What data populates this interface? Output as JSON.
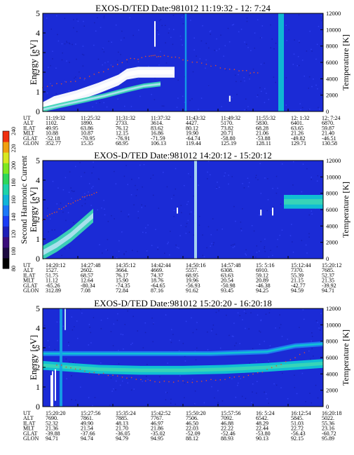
{
  "figure": {
    "colorbar": {
      "label": "Second Harmonic Current",
      "ticks": [
        "80",
        "100",
        "120",
        "140",
        "160",
        "180",
        "200",
        "220",
        "240"
      ],
      "colors": [
        "#000000",
        "#1c0a40",
        "#3a0d7a",
        "#1d1fb8",
        "#1a3cf5",
        "#1b78f8",
        "#10b4d8",
        "#1fd4a8",
        "#2fd85a",
        "#7ee820",
        "#d8e820",
        "#f0a010",
        "#f03010"
      ]
    },
    "panels": [
      {
        "title": "EXOS-D/TED   Date:981012  11:19:32 - 12: 7:24",
        "ylabel": "Energy [eV]",
        "y2label": "Temperature [K]",
        "yticks": [
          "0",
          "1",
          "2",
          "3",
          "4",
          "5"
        ],
        "y2ticks": [
          "0",
          "2000",
          "4000",
          "6000",
          "8000",
          "10000",
          "12000"
        ],
        "rows": [
          {
            "label": "UT",
            "values": [
              "11:19:32",
              "11:25:32",
              "11:31:32",
              "11:37:32",
              "11:43:32",
              "11:49:32",
              "11:55:32",
              "12: 1:32",
              "12: 7:24"
            ]
          },
          {
            "label": "ALT",
            "values": [
              "1102.",
              "1890.",
              "2733.",
              "3614.",
              "4427.",
              "5170.",
              "5830.",
              "6401.",
              "6870."
            ]
          },
          {
            "label": "ILAT",
            "values": [
              "49.95",
              "63.86",
              "76.12",
              "83.62",
              "80.12",
              "73.82",
              "68.28",
              "63.65",
              "59.87"
            ]
          },
          {
            "label": "MLT",
            "values": [
              "10.88",
              "10.87",
              "12.15",
              "16.86",
              "19.90",
              "20.71",
              "21.06",
              "21.26",
              "21.40"
            ]
          },
          {
            "label": "GLAT",
            "values": [
              "-52.18",
              "-70.95",
              "-76.91",
              "-71.59",
              "-64.74",
              "-58.80",
              "-53.88",
              "-49.82",
              "-46.51"
            ]
          },
          {
            "label": "GLON",
            "values": [
              "352.77",
              "15.35",
              "68.95",
              "106.13",
              "119.44",
              "125.19",
              "128.11",
              "129.71",
              "130.58"
            ]
          }
        ]
      },
      {
        "title": "EXOS-D/TED   Date:981012  14:20:12 - 15:20:12",
        "ylabel": "Energy [eV]",
        "y2label": "Temperature [K]",
        "yticks": [
          "0",
          "1",
          "2",
          "3",
          "4",
          "5"
        ],
        "y2ticks": [
          "0",
          "2000",
          "4000",
          "6000",
          "8000",
          "10000",
          "12000"
        ],
        "rows": [
          {
            "label": "UT",
            "values": [
              "14:20:12",
              "14:27:48",
              "14:35:12",
              "14:42:44",
              "14:50:16",
              "14:57:48",
              "15: 5:16",
              "15:12:44",
              "15:20:12"
            ]
          },
          {
            "label": "ALT",
            "values": [
              "1527.",
              "2602.",
              "3664.",
              "4669.",
              "5557.",
              "6308.",
              "6910.",
              "7370.",
              "7685."
            ]
          },
          {
            "label": "ILAT",
            "values": [
              "51.75",
              "68.57",
              "76.17",
              "74.37",
              "68.95",
              "63.63",
              "59.12",
              "55.39",
              "52.37"
            ]
          },
          {
            "label": "MLT",
            "values": [
              "11.12",
              "12.64",
              "15.90",
              "18.76",
              "19.96",
              "20.54",
              "20.89",
              "21.15",
              "21.35"
            ]
          },
          {
            "label": "GLAT",
            "values": [
              "-65.26",
              "-80.34",
              "-74.35",
              "-64.65",
              "-56.93",
              "-50.98",
              "-46.38",
              "-42.77",
              "-39.92"
            ]
          },
          {
            "label": "GLON",
            "values": [
              "312.89",
              "7.08",
              "72.84",
              "87.16",
              "91.62",
              "93.45",
              "94.25",
              "94.59",
              "94.71"
            ]
          }
        ]
      },
      {
        "title": "EXOS-D/TED   Date:981012  15:20:20 - 16:20:18",
        "ylabel": "Energy [eV]",
        "y2label": "Temperature [K]",
        "yticks": [
          "0",
          "1",
          "2",
          "3",
          "4",
          "5"
        ],
        "y2ticks": [
          "0",
          "2000",
          "4000",
          "6000",
          "8000",
          "10000",
          "12000"
        ],
        "rows": [
          {
            "label": "UT",
            "values": [
              "15:20:20",
              "15:27:56",
              "15:35:24",
              "15:42:52",
              "15:50:20",
              "15:57:56",
              "16: 5:24",
              "16:12:54",
              "16:20:18"
            ]
          },
          {
            "label": "ALT",
            "values": [
              "7690.",
              "7861.",
              "7885.",
              "7767.",
              "7506.",
              "7092.",
              "6542.",
              "5845.",
              "5022."
            ]
          },
          {
            "label": "ILAT",
            "values": [
              "52.32",
              "49.90",
              "48.13",
              "46.97",
              "46.50",
              "46.88",
              "48.29",
              "51.03",
              "55.36"
            ]
          },
          {
            "label": "MLT",
            "values": [
              "21.36",
              "21.54",
              "21.70",
              "21.86",
              "22.03",
              "22.22",
              "22.44",
              "22.72",
              "23.16"
            ]
          },
          {
            "label": "GLAT",
            "values": [
              "-39.88",
              "-37.66",
              "-36.05",
              "-35.02",
              "-52.09",
              "-52.46",
              "-53.80",
              "-56.43",
              "-60.72"
            ]
          },
          {
            "label": "GLON",
            "values": [
              "94.71",
              "94.74",
              "94.79",
              "94.95",
              "88.12",
              "88.93",
              "90.13",
              "92.15",
              "95.89"
            ]
          }
        ]
      }
    ]
  },
  "chart_data": [
    {
      "type": "heatmap",
      "title": "EXOS-D/TED   Date:981012  11:19:32 - 12: 7:24",
      "xlabel": "UT",
      "ylabel": "Energy [eV]",
      "y2label": "Temperature [K]",
      "ylim": [
        0,
        5
      ],
      "y2lim": [
        0,
        12000
      ],
      "features": [
        {
          "kind": "band",
          "x": [
            0.0,
            0.04,
            0.12,
            0.2,
            0.27,
            0.3,
            0.34,
            0.38,
            0.44,
            0.47
          ],
          "y": [
            0.2,
            0.5,
            0.8,
            1.2,
            1.6,
            1.9,
            2.0,
            2.0,
            2.0,
            2.0
          ],
          "w": 0.55,
          "level": 0.95
        },
        {
          "kind": "band",
          "x": [
            0.0,
            0.06,
            0.14,
            0.22,
            0.3,
            0.36,
            0.42
          ],
          "y": [
            0.1,
            0.3,
            0.55,
            0.8,
            1.1,
            1.3,
            1.4
          ],
          "w": 0.25,
          "level": 0.7
        },
        {
          "kind": "vline",
          "x": 0.4,
          "y": [
            3.3,
            4.6
          ],
          "level": 1.0
        },
        {
          "kind": "vline",
          "x": 0.667,
          "y": [
            0.5,
            0.8
          ],
          "level": 1.0
        },
        {
          "kind": "vstripe",
          "x": 0.85,
          "w": 0.02,
          "y": [
            0,
            5
          ],
          "level": 0.55
        },
        {
          "kind": "vstripe",
          "x": 0.51,
          "w": 0.006,
          "y": [
            0,
            5
          ],
          "level": 0.45
        }
      ],
      "temperature": {
        "x": [
          0.0,
          0.1,
          0.2,
          0.3,
          0.38,
          0.42,
          0.5,
          0.6,
          0.7,
          0.78
        ],
        "y": [
          3000,
          3600,
          4700,
          6300,
          6700,
          6800,
          6400,
          5600,
          5000,
          4600
        ]
      }
    },
    {
      "type": "heatmap",
      "title": "EXOS-D/TED   Date:981012  14:20:12 - 15:20:12",
      "xlabel": "UT",
      "ylabel": "Energy [eV]",
      "y2label": "Temperature [K]",
      "ylim": [
        0,
        5
      ],
      "y2lim": [
        0,
        12000
      ],
      "features": [
        {
          "kind": "band",
          "x": [
            0.0,
            0.05,
            0.1,
            0.14,
            0.18
          ],
          "y": [
            0.3,
            0.7,
            1.2,
            1.7,
            2.2
          ],
          "w": 0.7,
          "level": 0.65
        },
        {
          "kind": "vstripe",
          "x": 0.545,
          "w": 0.01,
          "y": [
            0,
            5
          ],
          "level": 0.9
        },
        {
          "kind": "band",
          "x": [
            0.86,
            0.92,
            1.0
          ],
          "y": [
            2.9,
            2.9,
            2.9
          ],
          "w": 0.7,
          "level": 0.6
        },
        {
          "kind": "vline",
          "x": 0.48,
          "y": [
            2.3,
            2.6
          ],
          "level": 1.0
        },
        {
          "kind": "vline",
          "x": 0.778,
          "y": [
            2.2,
            2.5
          ],
          "level": 1.0
        },
        {
          "kind": "vline",
          "x": 0.82,
          "y": [
            2.2,
            2.6
          ],
          "level": 1.0
        }
      ],
      "temperature": {
        "x": [
          0.0,
          0.05,
          0.1,
          0.15,
          0.2
        ],
        "y": [
          4800,
          5800,
          6800,
          7600,
          8200
        ]
      }
    },
    {
      "type": "heatmap",
      "title": "EXOS-D/TED   Date:981012  15:20:20 - 16:20:18",
      "xlabel": "UT",
      "ylabel": "Energy [eV]",
      "y2label": "Temperature [K]",
      "ylim": [
        0,
        5
      ],
      "y2lim": [
        0,
        12000
      ],
      "features": [
        {
          "kind": "band",
          "x": [
            0.0,
            0.1,
            0.2,
            0.35,
            0.5,
            0.65,
            0.8,
            0.9,
            1.0
          ],
          "y": [
            2.1,
            2.0,
            1.9,
            1.85,
            1.85,
            1.9,
            2.0,
            2.1,
            2.2
          ],
          "w": 0.45,
          "level": 0.6
        },
        {
          "kind": "band",
          "x": [
            0.0,
            0.3,
            0.6,
            0.8,
            0.9,
            1.0
          ],
          "y": [
            2.7,
            2.7,
            2.7,
            2.8,
            3.1,
            3.2
          ],
          "w": 0.25,
          "level": 0.35
        },
        {
          "kind": "vline",
          "x": 0.03,
          "y": [
            0,
            1.6
          ],
          "level": -1
        },
        {
          "kind": "vline",
          "x": 0.035,
          "y": [
            0,
            1.8
          ],
          "level": -1
        },
        {
          "kind": "vline",
          "x": 0.045,
          "y": [
            0.3,
            1.9
          ],
          "level": -1
        },
        {
          "kind": "vstripe",
          "x": 0.065,
          "w": 0.01,
          "y": [
            0,
            5
          ],
          "level": 0.45
        },
        {
          "kind": "vline",
          "x": 0.08,
          "y": [
            3.9,
            5.0
          ],
          "level": 0.9
        }
      ],
      "temperature": {
        "x": [
          0.05,
          0.15,
          0.25,
          0.35,
          0.45,
          0.55,
          0.65,
          0.75,
          0.85,
          0.95
        ],
        "y": [
          5200,
          4300,
          3800,
          3300,
          3000,
          3100,
          3400,
          3900,
          5200,
          6900
        ]
      }
    }
  ]
}
